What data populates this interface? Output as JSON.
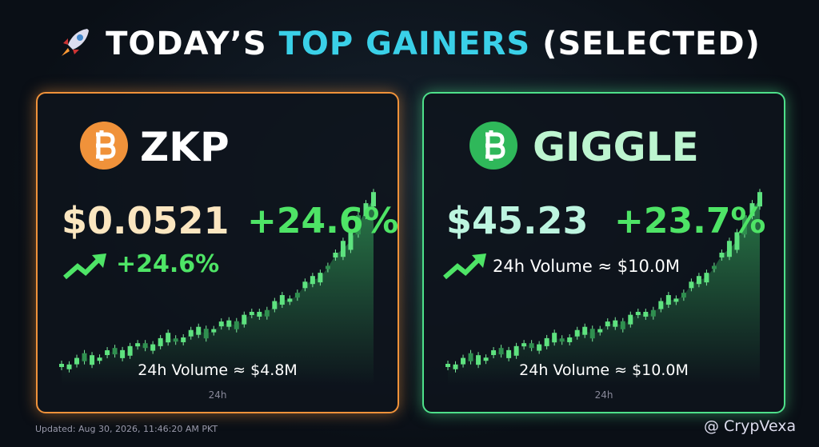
{
  "header": {
    "title": [
      "TODAY’S",
      "TOP GAINERS",
      "(SELECTED)"
    ]
  },
  "cards": [
    {
      "symbol": "ZKP",
      "price": "$0.0521",
      "change": "+24.6%",
      "trend": "+24.6%",
      "volume": "24h Volume ≈ $4.8M",
      "axis": "24h"
    },
    {
      "symbol": "GIGGLE",
      "price": "$45.23",
      "change": "+23.7%",
      "trend": "24h Volume ≈ $10.0M",
      "volume": "24h Volume ≈ $10.0M",
      "axis": "24h"
    }
  ],
  "footer": {
    "updated": "Updated: Aug 30, 2026, 11:46:20 AM PKT",
    "brand": "@ CrypVexa"
  }
}
